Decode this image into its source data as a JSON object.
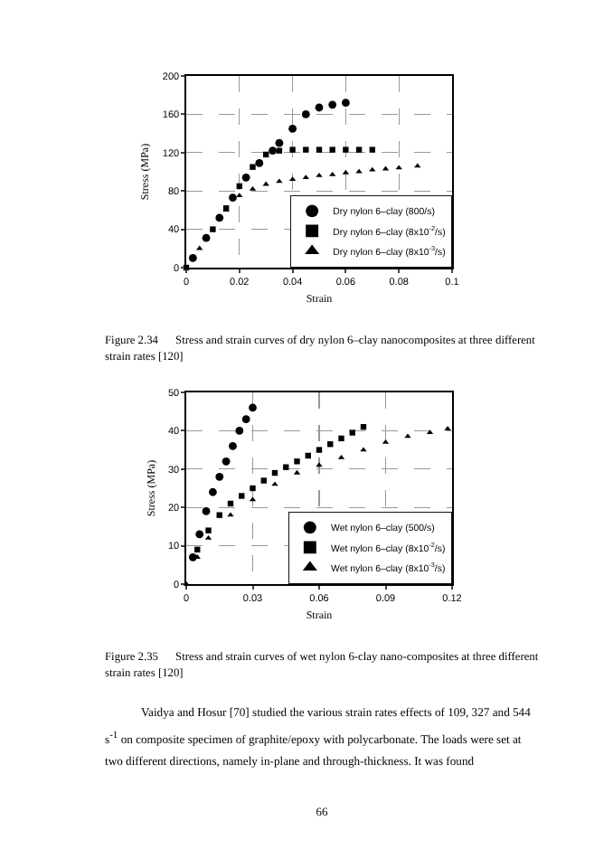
{
  "chart_data": [
    {
      "type": "scatter",
      "xlabel": "Strain",
      "ylabel": "Stress (MPa)",
      "xlim": [
        0,
        0.1
      ],
      "xticks": [
        0,
        0.02,
        0.04,
        0.06,
        0.08,
        0.1
      ],
      "ylim": [
        0,
        200
      ],
      "yticks": [
        0,
        40,
        80,
        120,
        160,
        200
      ],
      "grid": true,
      "legend": "bottom right",
      "annotations": [
        "Figure 2.34     Stress and strain curves of dry nylon 6–clay nanocomposites at three different strain rates [120]"
      ],
      "series": [
        {
          "name": "Dry nylon 6–clay (800/s)",
          "color": "#000000",
          "marker": "circle",
          "x": [
            0.0025,
            0.0075,
            0.0125,
            0.0175,
            0.0225,
            0.0275,
            0.0325,
            0.035,
            0.04,
            0.045,
            0.05,
            0.055,
            0.06
          ],
          "values": [
            10,
            31,
            52,
            73,
            94,
            109,
            122,
            130,
            145,
            160,
            167,
            170,
            172
          ]
        },
        {
          "name": "Dry nylon 6–clay (8x10$^{-2}$/s)",
          "color": "#000000",
          "marker": "square",
          "x": [
            0,
            0.005,
            0.01,
            0.015,
            0.02,
            0.025,
            0.03,
            0.035,
            0.04,
            0.045,
            0.05,
            0.055,
            0.06,
            0.065,
            0.07
          ],
          "values": [
            0,
            null,
            40,
            62,
            85,
            105,
            118,
            122,
            123,
            123,
            123,
            123,
            123,
            123,
            123
          ]
        },
        {
          "name": "Dry nylon 6–clay (8x10$^{-3}$/s)",
          "color": "#000000",
          "marker": "triangle",
          "x": [
            0.005,
            0.01,
            0.015,
            0.02,
            0.025,
            0.03,
            0.035,
            0.04,
            0.045,
            0.05,
            0.055,
            0.06,
            0.065,
            0.07,
            0.075,
            0.08,
            0.087
          ],
          "values": [
            20,
            null,
            60,
            75,
            82,
            87,
            90,
            92,
            94,
            96,
            97,
            99,
            100,
            102,
            103,
            104,
            106
          ]
        }
      ]
    },
    {
      "type": "scatter",
      "xlabel": "Strain",
      "ylabel": "Stress (MPa)",
      "xlim": [
        0,
        0.12
      ],
      "xticks": [
        0,
        0.03,
        0.06,
        0.09,
        0.12
      ],
      "ylim": [
        0,
        50
      ],
      "yticks": [
        0,
        10,
        20,
        30,
        40,
        50
      ],
      "grid": true,
      "legend": "bottom right",
      "annotations": [
        "Figure 2.35     Stress and strain curves of wet nylon 6-clay nano-composites at three different strain rates [120]",
        "Vaidya and Hosur [70] studied the various strain rates effects of 109, 327 and 544 s$^{-1}$ on composite specimen of graphite/epoxy with polycarbonate. The loads were set at two different directions, namely in-plane and through-thickness. It was found",
        "66"
      ],
      "series": [
        {
          "name": "Wet nylon 6–clay (500/s)",
          "color": "#000000",
          "marker": "circle",
          "x": [
            0.003,
            0.006,
            0.009,
            0.012,
            0.015,
            0.018,
            0.021,
            0.024,
            0.027,
            0.03
          ],
          "values": [
            7,
            13,
            19,
            24,
            28,
            32,
            36,
            40,
            43,
            46
          ]
        },
        {
          "name": "Wet nylon 6–clay (8x10$^{-2}$/s)",
          "color": "#000000",
          "marker": "square",
          "x": [
            0.005,
            0.01,
            0.015,
            0.02,
            0.025,
            0.03,
            0.035,
            0.04,
            0.045,
            0.05,
            0.055,
            0.06,
            0.065,
            0.07,
            0.075,
            0.08
          ],
          "values": [
            9,
            14,
            18,
            21,
            23,
            25,
            27,
            29,
            30.5,
            32,
            33.5,
            35,
            36.5,
            38,
            39.5,
            41
          ]
        },
        {
          "name": "Wet nylon 6–clay (8x10$^{-3}$/s)",
          "color": "#000000",
          "marker": "triangle",
          "x": [
            0,
            0.005,
            0.01,
            0.02,
            0.03,
            0.04,
            0.05,
            0.06,
            0.07,
            0.08,
            0.09,
            0.1,
            0.11,
            0.118
          ],
          "values": [
            0,
            7,
            12,
            18,
            22,
            26,
            29,
            31,
            33,
            35,
            37,
            38.5,
            39.5,
            40.5
          ]
        }
      ]
    }
  ]
}
